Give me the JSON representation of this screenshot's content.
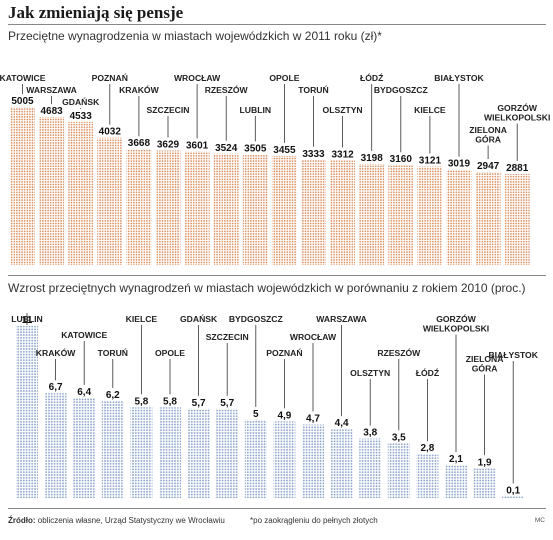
{
  "title": "Jak zmieniają się pensje",
  "footer": {
    "source_label": "Źródło:",
    "source_text": "obliczenia własne, Urząd Statystyczny we Wrocławiu",
    "note": "*po zaokrągleniu do pełnych złotych",
    "initials": "MC"
  },
  "colors": {
    "salary_dots": "#d98a5a",
    "growth_dots": "#8aa3c8",
    "leader": "#333333"
  },
  "chart_data": [
    {
      "type": "bar",
      "title": "Przeciętne wynagrodzenia w miastach wojewódzkich w 2011 roku (zł)*",
      "categories": [
        "KATOWICE",
        "WARSZAWA",
        "GDAŃSK",
        "POZNAŃ",
        "KRAKÓW",
        "SZCZECIN",
        "WROCŁAW",
        "RZESZÓW",
        "LUBLIN",
        "OPOLE",
        "TORUŃ",
        "OLSZTYN",
        "ŁÓDŹ",
        "BYDGOSZCZ",
        "KIELCE",
        "BIAŁYSTOK",
        "ZIELONA GÓRA",
        "GORZÓW WIELKOPOLSKI"
      ],
      "values": [
        5005,
        4683,
        4533,
        4032,
        3668,
        3629,
        3601,
        3524,
        3505,
        3455,
        3333,
        3312,
        3198,
        3160,
        3121,
        3019,
        2947,
        2881
      ],
      "value_labels": [
        "5005",
        "4683",
        "4533",
        "4032",
        "3668",
        "3629",
        "3601",
        "3524",
        "3505",
        "3455",
        "3333",
        "3312",
        "3198",
        "3160",
        "3121",
        "3019",
        "2947",
        "2881"
      ],
      "xlabel": "",
      "ylabel": "",
      "ylim": [
        0,
        5005
      ]
    },
    {
      "type": "bar",
      "title": "Wzrost przeciętnych wynagrodzeń w miastach wojewódzkich w porównaniu z rokiem 2010 (proc.)",
      "categories": [
        "LUBLIN",
        "KRAKÓW",
        "KATOWICE",
        "TORUŃ",
        "KIELCE",
        "OPOLE",
        "GDAŃSK",
        "SZCZECIN",
        "BYDGOSZCZ",
        "POZNAŃ",
        "WROCŁAW",
        "WARSZAWA",
        "OLSZTYN",
        "RZESZÓW",
        "ŁÓDŹ",
        "GORZÓW WIELKOPOLSKI",
        "ZIELONA GÓRA",
        "BIAŁYSTOK"
      ],
      "values": [
        11,
        6.7,
        6.4,
        6.2,
        5.8,
        5.8,
        5.7,
        5.7,
        5,
        4.9,
        4.7,
        4.4,
        3.8,
        3.5,
        2.8,
        2.1,
        1.9,
        0.1
      ],
      "value_labels": [
        "11",
        "6,7",
        "6,4",
        "6,2",
        "5,8",
        "5,8",
        "5,7",
        "5,7",
        "5",
        "4,9",
        "4,7",
        "4,4",
        "3,8",
        "3,5",
        "2,8",
        "2,1",
        "1,9",
        "0,1"
      ],
      "xlabel": "",
      "ylabel": "",
      "ylim": [
        0,
        11
      ]
    }
  ]
}
